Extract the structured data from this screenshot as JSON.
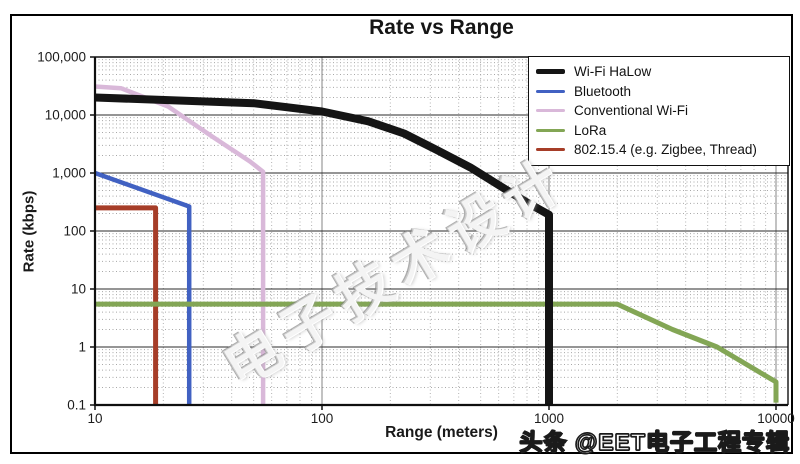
{
  "title": "Rate vs Range",
  "axes": {
    "xlabel": "Range (meters)",
    "ylabel": "Rate (kbps)"
  },
  "watermarks": {
    "center": "电子技术设计",
    "bottom": "头条 @EET电子工程专辑"
  },
  "chart_data": {
    "type": "line",
    "title": "Rate vs Range",
    "xlabel": "Range (meters)",
    "ylabel": "Rate (kbps)",
    "x_scale": "log",
    "y_scale": "log",
    "xlim": [
      10,
      11000
    ],
    "ylim": [
      0.1,
      100000
    ],
    "grid": {
      "major": true,
      "minor_dotted": true
    },
    "legend_position": "upper right",
    "x_ticks": [
      {
        "value": 10,
        "label": "10"
      },
      {
        "value": 100,
        "label": "100"
      },
      {
        "value": 1000,
        "label": "1000"
      },
      {
        "value": 10000,
        "label": "10000"
      }
    ],
    "y_ticks": [
      {
        "value": 0.1,
        "label": "0.1"
      },
      {
        "value": 1,
        "label": "1"
      },
      {
        "value": 10,
        "label": "10"
      },
      {
        "value": 100,
        "label": "100"
      },
      {
        "value": 1000,
        "label": "1,000"
      },
      {
        "value": 10000,
        "label": "10,000"
      },
      {
        "value": 100000,
        "label": "100,000"
      }
    ],
    "series": [
      {
        "name": "Wi-Fi HaLow",
        "color": "#151515",
        "width": 8,
        "points": [
          [
            10,
            20000
          ],
          [
            50,
            16000
          ],
          [
            100,
            11500
          ],
          [
            160,
            7800
          ],
          [
            230,
            4800
          ],
          [
            320,
            2500
          ],
          [
            450,
            1250
          ],
          [
            600,
            620
          ],
          [
            800,
            310
          ],
          [
            1000,
            190
          ],
          [
            1000,
            0.1
          ]
        ]
      },
      {
        "name": "Bluetooth",
        "color": "#4161c2",
        "width": 4.5,
        "points": [
          [
            10,
            1000
          ],
          [
            26,
            265
          ],
          [
            26,
            0.1
          ]
        ]
      },
      {
        "name": "Conventional Wi-Fi",
        "color": "#d9b8d9",
        "width": 4.5,
        "points": [
          [
            10,
            31000
          ],
          [
            13,
            29000
          ],
          [
            21,
            14000
          ],
          [
            33,
            4200
          ],
          [
            48,
            1600
          ],
          [
            55,
            1050
          ],
          [
            55,
            0.1
          ]
        ]
      },
      {
        "name": "LoRa",
        "color": "#83a655",
        "width": 5,
        "points": [
          [
            10,
            5.5
          ],
          [
            2000,
            5.5
          ],
          [
            3500,
            2.0
          ],
          [
            5500,
            1.0
          ],
          [
            8000,
            0.42
          ],
          [
            10000,
            0.25
          ],
          [
            10000,
            0.11
          ]
        ]
      },
      {
        "name": "802.15.4 (e.g. Zigbee, Thread)",
        "color": "#a63d28",
        "width": 5,
        "points": [
          [
            10,
            250
          ],
          [
            18.5,
            250
          ],
          [
            18.5,
            0.1
          ]
        ]
      }
    ]
  }
}
